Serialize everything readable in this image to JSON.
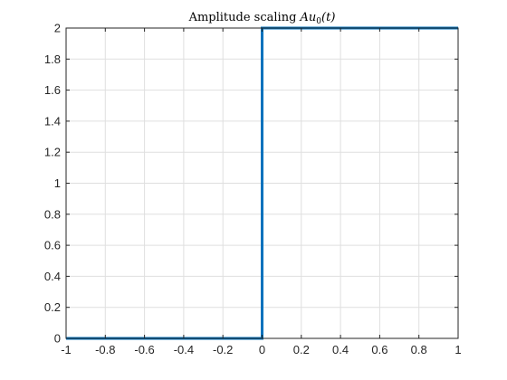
{
  "chart_data": {
    "type": "line",
    "title": "Amplitude scaling Au0(t)",
    "title_parts": {
      "text": "Amplitude scaling ",
      "math_A": "A",
      "math_u": "u",
      "math_sub": "0",
      "math_arg": "(t)"
    },
    "xlabel": "",
    "ylabel": "",
    "xlim": [
      -1,
      1
    ],
    "ylim": [
      0,
      2
    ],
    "xticks": [
      -1,
      -0.8,
      -0.6,
      -0.4,
      -0.2,
      0,
      0.2,
      0.4,
      0.6,
      0.8,
      1
    ],
    "xtick_labels": [
      "-1",
      "-0.8",
      "-0.6",
      "-0.4",
      "-0.2",
      "0",
      "0.2",
      "0.4",
      "0.6",
      "0.8",
      "1"
    ],
    "yticks": [
      0,
      0.2,
      0.4,
      0.6,
      0.8,
      1,
      1.2,
      1.4,
      1.6,
      1.8,
      2
    ],
    "ytick_labels": [
      "0",
      "0.2",
      "0.4",
      "0.6",
      "0.8",
      "1",
      "1.2",
      "1.4",
      "1.6",
      "1.8",
      "2"
    ],
    "grid": true,
    "series": [
      {
        "color": "#0072bd",
        "x": [
          -1,
          0,
          0,
          1
        ],
        "y": [
          0,
          0,
          2,
          2
        ]
      }
    ]
  }
}
